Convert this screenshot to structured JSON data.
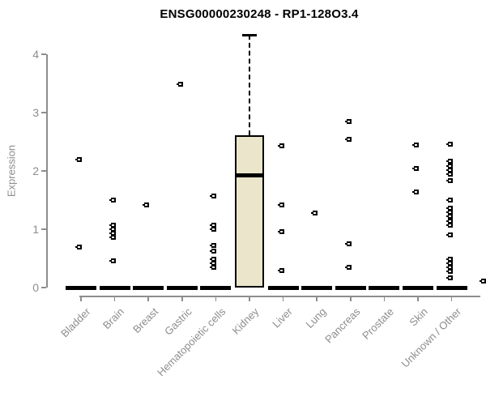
{
  "chart_data": {
    "type": "boxplot",
    "title": "ENSG00000230248 - RP1-128O3.4",
    "ylabel": "Expression",
    "xlabel": "",
    "ylim": [
      0,
      4.4
    ],
    "yticks": [
      0,
      1,
      2,
      3,
      4
    ],
    "grid": false,
    "legend": "none",
    "categories": [
      "Bladder",
      "Brain",
      "Breast",
      "Gastric",
      "Hematopoietic cells",
      "Kidney",
      "Liver",
      "Lung",
      "Pancreas",
      "Prostate",
      "Skin",
      "Unknown / Other"
    ],
    "boxes": [
      {
        "category": "Bladder",
        "q1": 0,
        "median": 0,
        "q3": 0,
        "whisker_low": 0,
        "whisker_high": 0,
        "outliers": [
          2.19,
          0.69
        ]
      },
      {
        "category": "Brain",
        "q1": 0,
        "median": 0,
        "q3": 0,
        "whisker_low": 0,
        "whisker_high": 0,
        "outliers": [
          1.5,
          1.07,
          1.0,
          0.93,
          0.86,
          0.46
        ]
      },
      {
        "category": "Breast",
        "q1": 0,
        "median": 0,
        "q3": 0,
        "whisker_low": 0,
        "whisker_high": 0,
        "outliers": [
          1.42
        ]
      },
      {
        "category": "Gastric",
        "q1": 0,
        "median": 0,
        "q3": 0,
        "whisker_low": 0,
        "whisker_high": 0,
        "outliers": [
          3.49
        ]
      },
      {
        "category": "Hematopoietic cells",
        "q1": 0,
        "median": 0,
        "q3": 0,
        "whisker_low": 0,
        "whisker_high": 0,
        "outliers": [
          1.57,
          1.07,
          1.0,
          0.72,
          0.63,
          0.49,
          0.42,
          0.35
        ]
      },
      {
        "category": "Kidney",
        "q1": 0,
        "median": 1.92,
        "q3": 2.61,
        "whisker_low": 0,
        "whisker_high": 4.33,
        "outliers": []
      },
      {
        "category": "Liver",
        "q1": 0,
        "median": 0,
        "q3": 0,
        "whisker_low": 0,
        "whisker_high": 0,
        "outliers": [
          2.43,
          1.42,
          0.96,
          0.29
        ]
      },
      {
        "category": "Lung",
        "q1": 0,
        "median": 0,
        "q3": 0,
        "whisker_low": 0,
        "whisker_high": 0,
        "outliers": [
          1.28
        ]
      },
      {
        "category": "Pancreas",
        "q1": 0,
        "median": 0,
        "q3": 0,
        "whisker_low": 0,
        "whisker_high": 0,
        "outliers": [
          2.85,
          2.54,
          0.75,
          0.35
        ]
      },
      {
        "category": "Prostate",
        "q1": 0,
        "median": 0,
        "q3": 0,
        "whisker_low": 0,
        "whisker_high": 0,
        "outliers": []
      },
      {
        "category": "Skin",
        "q1": 0,
        "median": 0,
        "q3": 0,
        "whisker_low": 0,
        "whisker_high": 0,
        "outliers": [
          2.44,
          2.04,
          1.64
        ]
      },
      {
        "category": "Unknown / Other",
        "q1": 0,
        "median": 0,
        "q3": 0,
        "whisker_low": 0,
        "whisker_high": 0,
        "outliers": [
          2.46,
          2.17,
          2.08,
          2.01,
          1.94,
          1.83,
          1.5,
          1.36,
          1.29,
          1.22,
          1.14,
          1.07,
          0.9,
          0.49,
          0.42,
          0.35,
          0.28,
          0.17
        ]
      }
    ],
    "edge_point": {
      "category": "Unknown / Other",
      "value": 0.11
    }
  },
  "colors": {
    "background": "#ffffff",
    "box_fill": "#EAE5CB",
    "box_border": "#000000",
    "median": "#000000",
    "point": "#000000",
    "axis": "#8d8d8d",
    "label": "#8d8d8d",
    "title": "#000000"
  }
}
